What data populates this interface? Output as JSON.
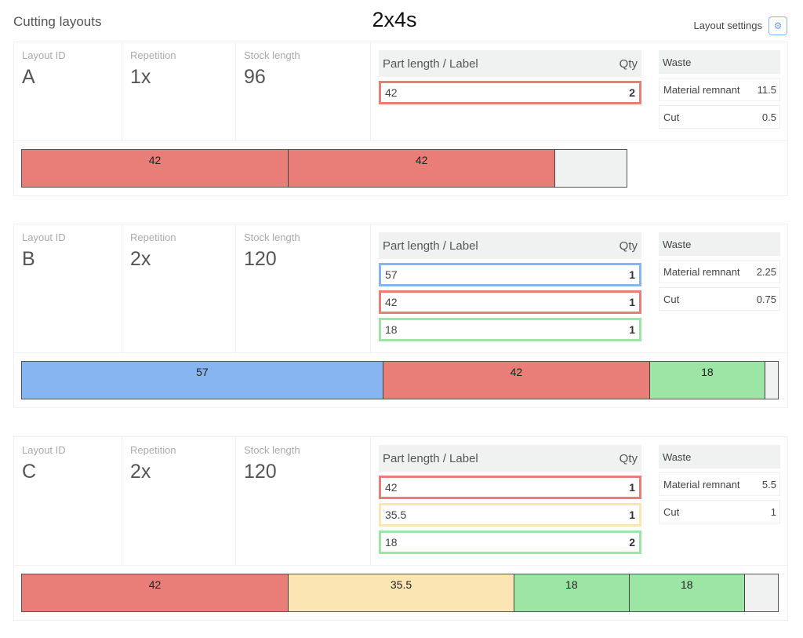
{
  "header": {
    "section_title": "Cutting layouts",
    "title": "2x4s",
    "settings_label": "Layout settings",
    "settings_icon": "gears-icon"
  },
  "labels": {
    "layout_id": "Layout ID",
    "repetition": "Repetition",
    "stock_length": "Stock length",
    "part_header": "Part length / Label",
    "qty_header": "Qty",
    "waste": "Waste",
    "remnant": "Material remnant",
    "cut": "Cut"
  },
  "colors": {
    "red": "#e97d78",
    "blue": "#86b5f2",
    "green": "#9de5a5",
    "yellow": "#fbe6b3",
    "remnant": "#f0f1f1"
  },
  "layouts": [
    {
      "id": "A",
      "repetition": "1x",
      "stock": 96,
      "parts": [
        {
          "length": "42",
          "qty": "2",
          "color": "red"
        }
      ],
      "remnant": "11.5",
      "cut": "0.5",
      "pieces": [
        [
          42,
          "red"
        ],
        [
          42,
          "red"
        ]
      ]
    },
    {
      "id": "B",
      "repetition": "2x",
      "stock": 120,
      "parts": [
        {
          "length": "57",
          "qty": "1",
          "color": "blue"
        },
        {
          "length": "42",
          "qty": "1",
          "color": "red"
        },
        {
          "length": "18",
          "qty": "1",
          "color": "green"
        }
      ],
      "remnant": "2.25",
      "cut": "0.75",
      "pieces": [
        [
          57,
          "blue"
        ],
        [
          42,
          "red"
        ],
        [
          18,
          "green"
        ]
      ]
    },
    {
      "id": "C",
      "repetition": "2x",
      "stock": 120,
      "parts": [
        {
          "length": "42",
          "qty": "1",
          "color": "red"
        },
        {
          "length": "35.5",
          "qty": "1",
          "color": "yellow"
        },
        {
          "length": "18",
          "qty": "2",
          "color": "green"
        }
      ],
      "remnant": "5.5",
      "cut": "1",
      "pieces": [
        [
          42,
          "red"
        ],
        [
          35.5,
          "yellow"
        ],
        [
          18,
          "green"
        ],
        [
          18,
          "green"
        ]
      ]
    }
  ]
}
